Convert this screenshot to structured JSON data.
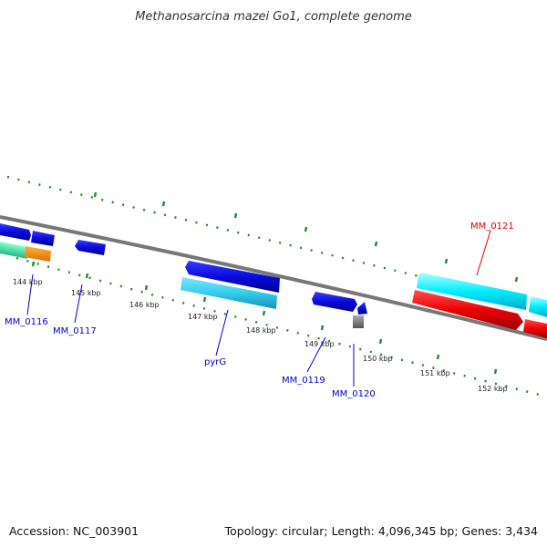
{
  "title": "Methanosarcina mazei Go1, complete genome",
  "footer": {
    "accession": "Accession: NC_003901",
    "topology": "Topology: circular; Length: 4,096,345 bp; Genes: 3,434"
  },
  "ticks": [
    "144 kbp",
    "145 kbp",
    "146 kbp",
    "147 kbp",
    "148 kbp",
    "149 kbp",
    "150 kbp",
    "151 kbp",
    "152 kbp"
  ],
  "genes": [
    {
      "name": "MM_0116",
      "color": "#0000cc"
    },
    {
      "name": "MM_0117",
      "color": "#0000cc"
    },
    {
      "name": "pyrG",
      "color": "#0000cc"
    },
    {
      "name": "MM_0119",
      "color": "#0000cc"
    },
    {
      "name": "MM_0120",
      "color": "#0000cc"
    },
    {
      "name": "MM_0121",
      "color": "#dd0000"
    }
  ],
  "colors": {
    "backbone": "#777777",
    "tick": "#228b22",
    "cds_blue": "#0a0adc",
    "cds_cyan": "#33ccee",
    "cds_cyan_bright": "#00eeff",
    "cds_red": "#ee0000",
    "teal": "#33dd99",
    "orange": "#ff8800",
    "gray_feature": "#888888"
  }
}
